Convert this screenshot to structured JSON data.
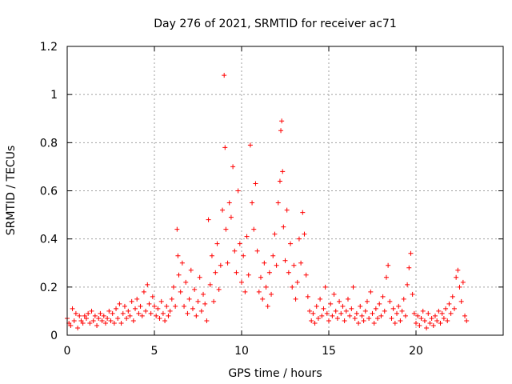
{
  "chart_data": {
    "type": "scatter",
    "title": "Day 276 of 2021, SRMTID for receiver ac71",
    "xlabel": "GPS time / hours",
    "ylabel": "SRMTID / TECUs",
    "xlim": [
      0,
      25
    ],
    "ylim": [
      0,
      1.2
    ],
    "xticks": [
      0,
      5,
      10,
      15,
      20
    ],
    "xtick_labels": [
      "0",
      "5",
      "10",
      "15",
      "20"
    ],
    "yticks": [
      0,
      0.2,
      0.4,
      0.6,
      0.8,
      1.0,
      1.2
    ],
    "ytick_labels": [
      "0",
      "0.2",
      "0.4",
      "0.6",
      "0.8",
      "1",
      "1.2"
    ],
    "grid": true,
    "marker": "+",
    "color": "#ff0000",
    "series": [
      {
        "name": "SRMTID",
        "points": [
          [
            0.0,
            0.07
          ],
          [
            0.1,
            0.05
          ],
          [
            0.2,
            0.04
          ],
          [
            0.3,
            0.11
          ],
          [
            0.4,
            0.06
          ],
          [
            0.5,
            0.09
          ],
          [
            0.6,
            0.03
          ],
          [
            0.7,
            0.08
          ],
          [
            0.8,
            0.06
          ],
          [
            0.9,
            0.05
          ],
          [
            1.0,
            0.08
          ],
          [
            1.1,
            0.07
          ],
          [
            1.2,
            0.09
          ],
          [
            1.3,
            0.05
          ],
          [
            1.4,
            0.1
          ],
          [
            1.5,
            0.06
          ],
          [
            1.6,
            0.08
          ],
          [
            1.7,
            0.04
          ],
          [
            1.8,
            0.07
          ],
          [
            1.9,
            0.09
          ],
          [
            2.0,
            0.06
          ],
          [
            2.1,
            0.08
          ],
          [
            2.2,
            0.05
          ],
          [
            2.3,
            0.07
          ],
          [
            2.4,
            0.1
          ],
          [
            2.5,
            0.06
          ],
          [
            2.6,
            0.09
          ],
          [
            2.7,
            0.05
          ],
          [
            2.8,
            0.11
          ],
          [
            2.9,
            0.07
          ],
          [
            3.0,
            0.13
          ],
          [
            3.1,
            0.05
          ],
          [
            3.2,
            0.09
          ],
          [
            3.3,
            0.12
          ],
          [
            3.4,
            0.07
          ],
          [
            3.5,
            0.1
          ],
          [
            3.6,
            0.08
          ],
          [
            3.7,
            0.14
          ],
          [
            3.8,
            0.06
          ],
          [
            3.9,
            0.11
          ],
          [
            4.0,
            0.15
          ],
          [
            4.1,
            0.09
          ],
          [
            4.2,
            0.12
          ],
          [
            4.3,
            0.08
          ],
          [
            4.4,
            0.18
          ],
          [
            4.5,
            0.1
          ],
          [
            4.6,
            0.21
          ],
          [
            4.7,
            0.13
          ],
          [
            4.8,
            0.09
          ],
          [
            4.9,
            0.16
          ],
          [
            5.0,
            0.12
          ],
          [
            5.1,
            0.08
          ],
          [
            5.2,
            0.11
          ],
          [
            5.3,
            0.07
          ],
          [
            5.4,
            0.14
          ],
          [
            5.5,
            0.09
          ],
          [
            5.6,
            0.06
          ],
          [
            5.7,
            0.12
          ],
          [
            5.8,
            0.08
          ],
          [
            5.9,
            0.1
          ],
          [
            6.0,
            0.15
          ],
          [
            6.1,
            0.2
          ],
          [
            6.2,
            0.12
          ],
          [
            6.3,
            0.44
          ],
          [
            6.35,
            0.33
          ],
          [
            6.4,
            0.25
          ],
          [
            6.5,
            0.18
          ],
          [
            6.6,
            0.3
          ],
          [
            6.7,
            0.12
          ],
          [
            6.8,
            0.22
          ],
          [
            6.9,
            0.09
          ],
          [
            7.0,
            0.15
          ],
          [
            7.1,
            0.27
          ],
          [
            7.2,
            0.11
          ],
          [
            7.3,
            0.19
          ],
          [
            7.4,
            0.08
          ],
          [
            7.5,
            0.14
          ],
          [
            7.6,
            0.24
          ],
          [
            7.7,
            0.1
          ],
          [
            7.8,
            0.17
          ],
          [
            7.9,
            0.13
          ],
          [
            8.0,
            0.06
          ],
          [
            8.1,
            0.48
          ],
          [
            8.2,
            0.21
          ],
          [
            8.3,
            0.33
          ],
          [
            8.4,
            0.14
          ],
          [
            8.5,
            0.26
          ],
          [
            8.6,
            0.38
          ],
          [
            8.7,
            0.19
          ],
          [
            8.8,
            0.29
          ],
          [
            8.9,
            0.52
          ],
          [
            9.0,
            1.08
          ],
          [
            9.05,
            0.78
          ],
          [
            9.1,
            0.44
          ],
          [
            9.2,
            0.3
          ],
          [
            9.3,
            0.55
          ],
          [
            9.4,
            0.49
          ],
          [
            9.5,
            0.7
          ],
          [
            9.6,
            0.35
          ],
          [
            9.7,
            0.26
          ],
          [
            9.8,
            0.6
          ],
          [
            9.9,
            0.38
          ],
          [
            10.0,
            0.22
          ],
          [
            10.1,
            0.33
          ],
          [
            10.2,
            0.18
          ],
          [
            10.3,
            0.41
          ],
          [
            10.4,
            0.25
          ],
          [
            10.5,
            0.79
          ],
          [
            10.6,
            0.55
          ],
          [
            10.7,
            0.44
          ],
          [
            10.8,
            0.63
          ],
          [
            10.9,
            0.35
          ],
          [
            11.0,
            0.18
          ],
          [
            11.1,
            0.24
          ],
          [
            11.2,
            0.15
          ],
          [
            11.3,
            0.3
          ],
          [
            11.4,
            0.2
          ],
          [
            11.5,
            0.12
          ],
          [
            11.6,
            0.26
          ],
          [
            11.7,
            0.17
          ],
          [
            11.8,
            0.33
          ],
          [
            11.9,
            0.42
          ],
          [
            12.0,
            0.29
          ],
          [
            12.1,
            0.55
          ],
          [
            12.2,
            0.64
          ],
          [
            12.25,
            0.85
          ],
          [
            12.3,
            0.89
          ],
          [
            12.35,
            0.68
          ],
          [
            12.4,
            0.45
          ],
          [
            12.5,
            0.31
          ],
          [
            12.6,
            0.52
          ],
          [
            12.7,
            0.26
          ],
          [
            12.8,
            0.38
          ],
          [
            12.9,
            0.2
          ],
          [
            13.0,
            0.29
          ],
          [
            13.1,
            0.15
          ],
          [
            13.2,
            0.22
          ],
          [
            13.3,
            0.4
          ],
          [
            13.4,
            0.3
          ],
          [
            13.5,
            0.51
          ],
          [
            13.6,
            0.42
          ],
          [
            13.7,
            0.25
          ],
          [
            13.8,
            0.16
          ],
          [
            13.9,
            0.1
          ],
          [
            14.0,
            0.06
          ],
          [
            14.1,
            0.09
          ],
          [
            14.2,
            0.05
          ],
          [
            14.3,
            0.12
          ],
          [
            14.4,
            0.07
          ],
          [
            14.5,
            0.15
          ],
          [
            14.6,
            0.08
          ],
          [
            14.7,
            0.11
          ],
          [
            14.8,
            0.2
          ],
          [
            14.9,
            0.09
          ],
          [
            15.0,
            0.06
          ],
          [
            15.1,
            0.13
          ],
          [
            15.2,
            0.08
          ],
          [
            15.3,
            0.17
          ],
          [
            15.4,
            0.1
          ],
          [
            15.5,
            0.07
          ],
          [
            15.6,
            0.14
          ],
          [
            15.7,
            0.09
          ],
          [
            15.8,
            0.12
          ],
          [
            15.9,
            0.06
          ],
          [
            16.0,
            0.1
          ],
          [
            16.1,
            0.15
          ],
          [
            16.2,
            0.08
          ],
          [
            16.3,
            0.11
          ],
          [
            16.4,
            0.2
          ],
          [
            16.5,
            0.07
          ],
          [
            16.6,
            0.09
          ],
          [
            16.7,
            0.05
          ],
          [
            16.8,
            0.12
          ],
          [
            16.9,
            0.08
          ],
          [
            17.0,
            0.06
          ],
          [
            17.1,
            0.1
          ],
          [
            17.2,
            0.14
          ],
          [
            17.3,
            0.07
          ],
          [
            17.4,
            0.18
          ],
          [
            17.5,
            0.09
          ],
          [
            17.6,
            0.05
          ],
          [
            17.7,
            0.11
          ],
          [
            17.8,
            0.07
          ],
          [
            17.9,
            0.13
          ],
          [
            18.0,
            0.08
          ],
          [
            18.1,
            0.16
          ],
          [
            18.2,
            0.1
          ],
          [
            18.3,
            0.24
          ],
          [
            18.4,
            0.29
          ],
          [
            18.5,
            0.14
          ],
          [
            18.6,
            0.07
          ],
          [
            18.7,
            0.11
          ],
          [
            18.8,
            0.05
          ],
          [
            18.9,
            0.09
          ],
          [
            19.0,
            0.12
          ],
          [
            19.1,
            0.06
          ],
          [
            19.2,
            0.1
          ],
          [
            19.3,
            0.15
          ],
          [
            19.4,
            0.08
          ],
          [
            19.5,
            0.21
          ],
          [
            19.6,
            0.28
          ],
          [
            19.7,
            0.34
          ],
          [
            19.8,
            0.17
          ],
          [
            19.9,
            0.09
          ],
          [
            20.0,
            0.05
          ],
          [
            20.1,
            0.08
          ],
          [
            20.2,
            0.04
          ],
          [
            20.3,
            0.07
          ],
          [
            20.4,
            0.1
          ],
          [
            20.5,
            0.06
          ],
          [
            20.6,
            0.03
          ],
          [
            20.7,
            0.09
          ],
          [
            20.8,
            0.05
          ],
          [
            20.9,
            0.07
          ],
          [
            21.0,
            0.04
          ],
          [
            21.1,
            0.08
          ],
          [
            21.2,
            0.06
          ],
          [
            21.3,
            0.1
          ],
          [
            21.4,
            0.05
          ],
          [
            21.5,
            0.09
          ],
          [
            21.6,
            0.07
          ],
          [
            21.7,
            0.11
          ],
          [
            21.8,
            0.06
          ],
          [
            21.9,
            0.13
          ],
          [
            22.0,
            0.09
          ],
          [
            22.1,
            0.16
          ],
          [
            22.2,
            0.11
          ],
          [
            22.3,
            0.24
          ],
          [
            22.4,
            0.27
          ],
          [
            22.5,
            0.2
          ],
          [
            22.6,
            0.14
          ],
          [
            22.7,
            0.22
          ],
          [
            22.8,
            0.08
          ],
          [
            22.9,
            0.06
          ]
        ]
      }
    ]
  }
}
